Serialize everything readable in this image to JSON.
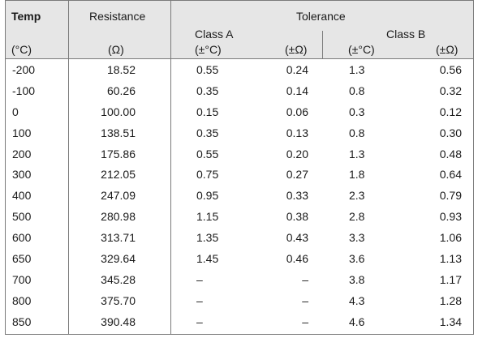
{
  "header": {
    "temp": "Temp",
    "resistance": "Resistance",
    "tolerance": "Tolerance",
    "class_a": "Class A",
    "class_b": "Class B",
    "unit_temp": "(°C)",
    "unit_res": "(Ω)",
    "unit_a_c": "(±°C)",
    "unit_a_o": "(±Ω)",
    "unit_b_c": "(±°C)",
    "unit_b_o": "(±Ω)"
  },
  "rows": [
    {
      "temp": "-200",
      "res": "18.52",
      "a_c": "0.55",
      "a_o": "0.24",
      "b_c": "1.3",
      "b_o": "0.56"
    },
    {
      "temp": "-100",
      "res": "60.26",
      "a_c": "0.35",
      "a_o": "0.14",
      "b_c": "0.8",
      "b_o": "0.32"
    },
    {
      "temp": "0",
      "res": "100.00",
      "a_c": "0.15",
      "a_o": "0.06",
      "b_c": "0.3",
      "b_o": "0.12"
    },
    {
      "temp": "100",
      "res": "138.51",
      "a_c": "0.35",
      "a_o": "0.13",
      "b_c": "0.8",
      "b_o": "0.30"
    },
    {
      "temp": "200",
      "res": "175.86",
      "a_c": "0.55",
      "a_o": "0.20",
      "b_c": "1.3",
      "b_o": "0.48"
    },
    {
      "temp": "300",
      "res": "212.05",
      "a_c": "0.75",
      "a_o": "0.27",
      "b_c": "1.8",
      "b_o": "0.64"
    },
    {
      "temp": "400",
      "res": "247.09",
      "a_c": "0.95",
      "a_o": "0.33",
      "b_c": "2.3",
      "b_o": "0.79"
    },
    {
      "temp": "500",
      "res": "280.98",
      "a_c": "1.15",
      "a_o": "0.38",
      "b_c": "2.8",
      "b_o": "0.93"
    },
    {
      "temp": "600",
      "res": "313.71",
      "a_c": "1.35",
      "a_o": "0.43",
      "b_c": "3.3",
      "b_o": "1.06"
    },
    {
      "temp": "650",
      "res": "329.64",
      "a_c": "1.45",
      "a_o": "0.46",
      "b_c": "3.6",
      "b_o": "1.13"
    },
    {
      "temp": "700",
      "res": "345.28",
      "a_c": "–",
      "a_o": "–",
      "b_c": "3.8",
      "b_o": "1.17"
    },
    {
      "temp": "800",
      "res": "375.70",
      "a_c": "–",
      "a_o": "–",
      "b_c": "4.3",
      "b_o": "1.28"
    },
    {
      "temp": "850",
      "res": "390.48",
      "a_c": "–",
      "a_o": "–",
      "b_c": "4.6",
      "b_o": "1.34"
    }
  ]
}
